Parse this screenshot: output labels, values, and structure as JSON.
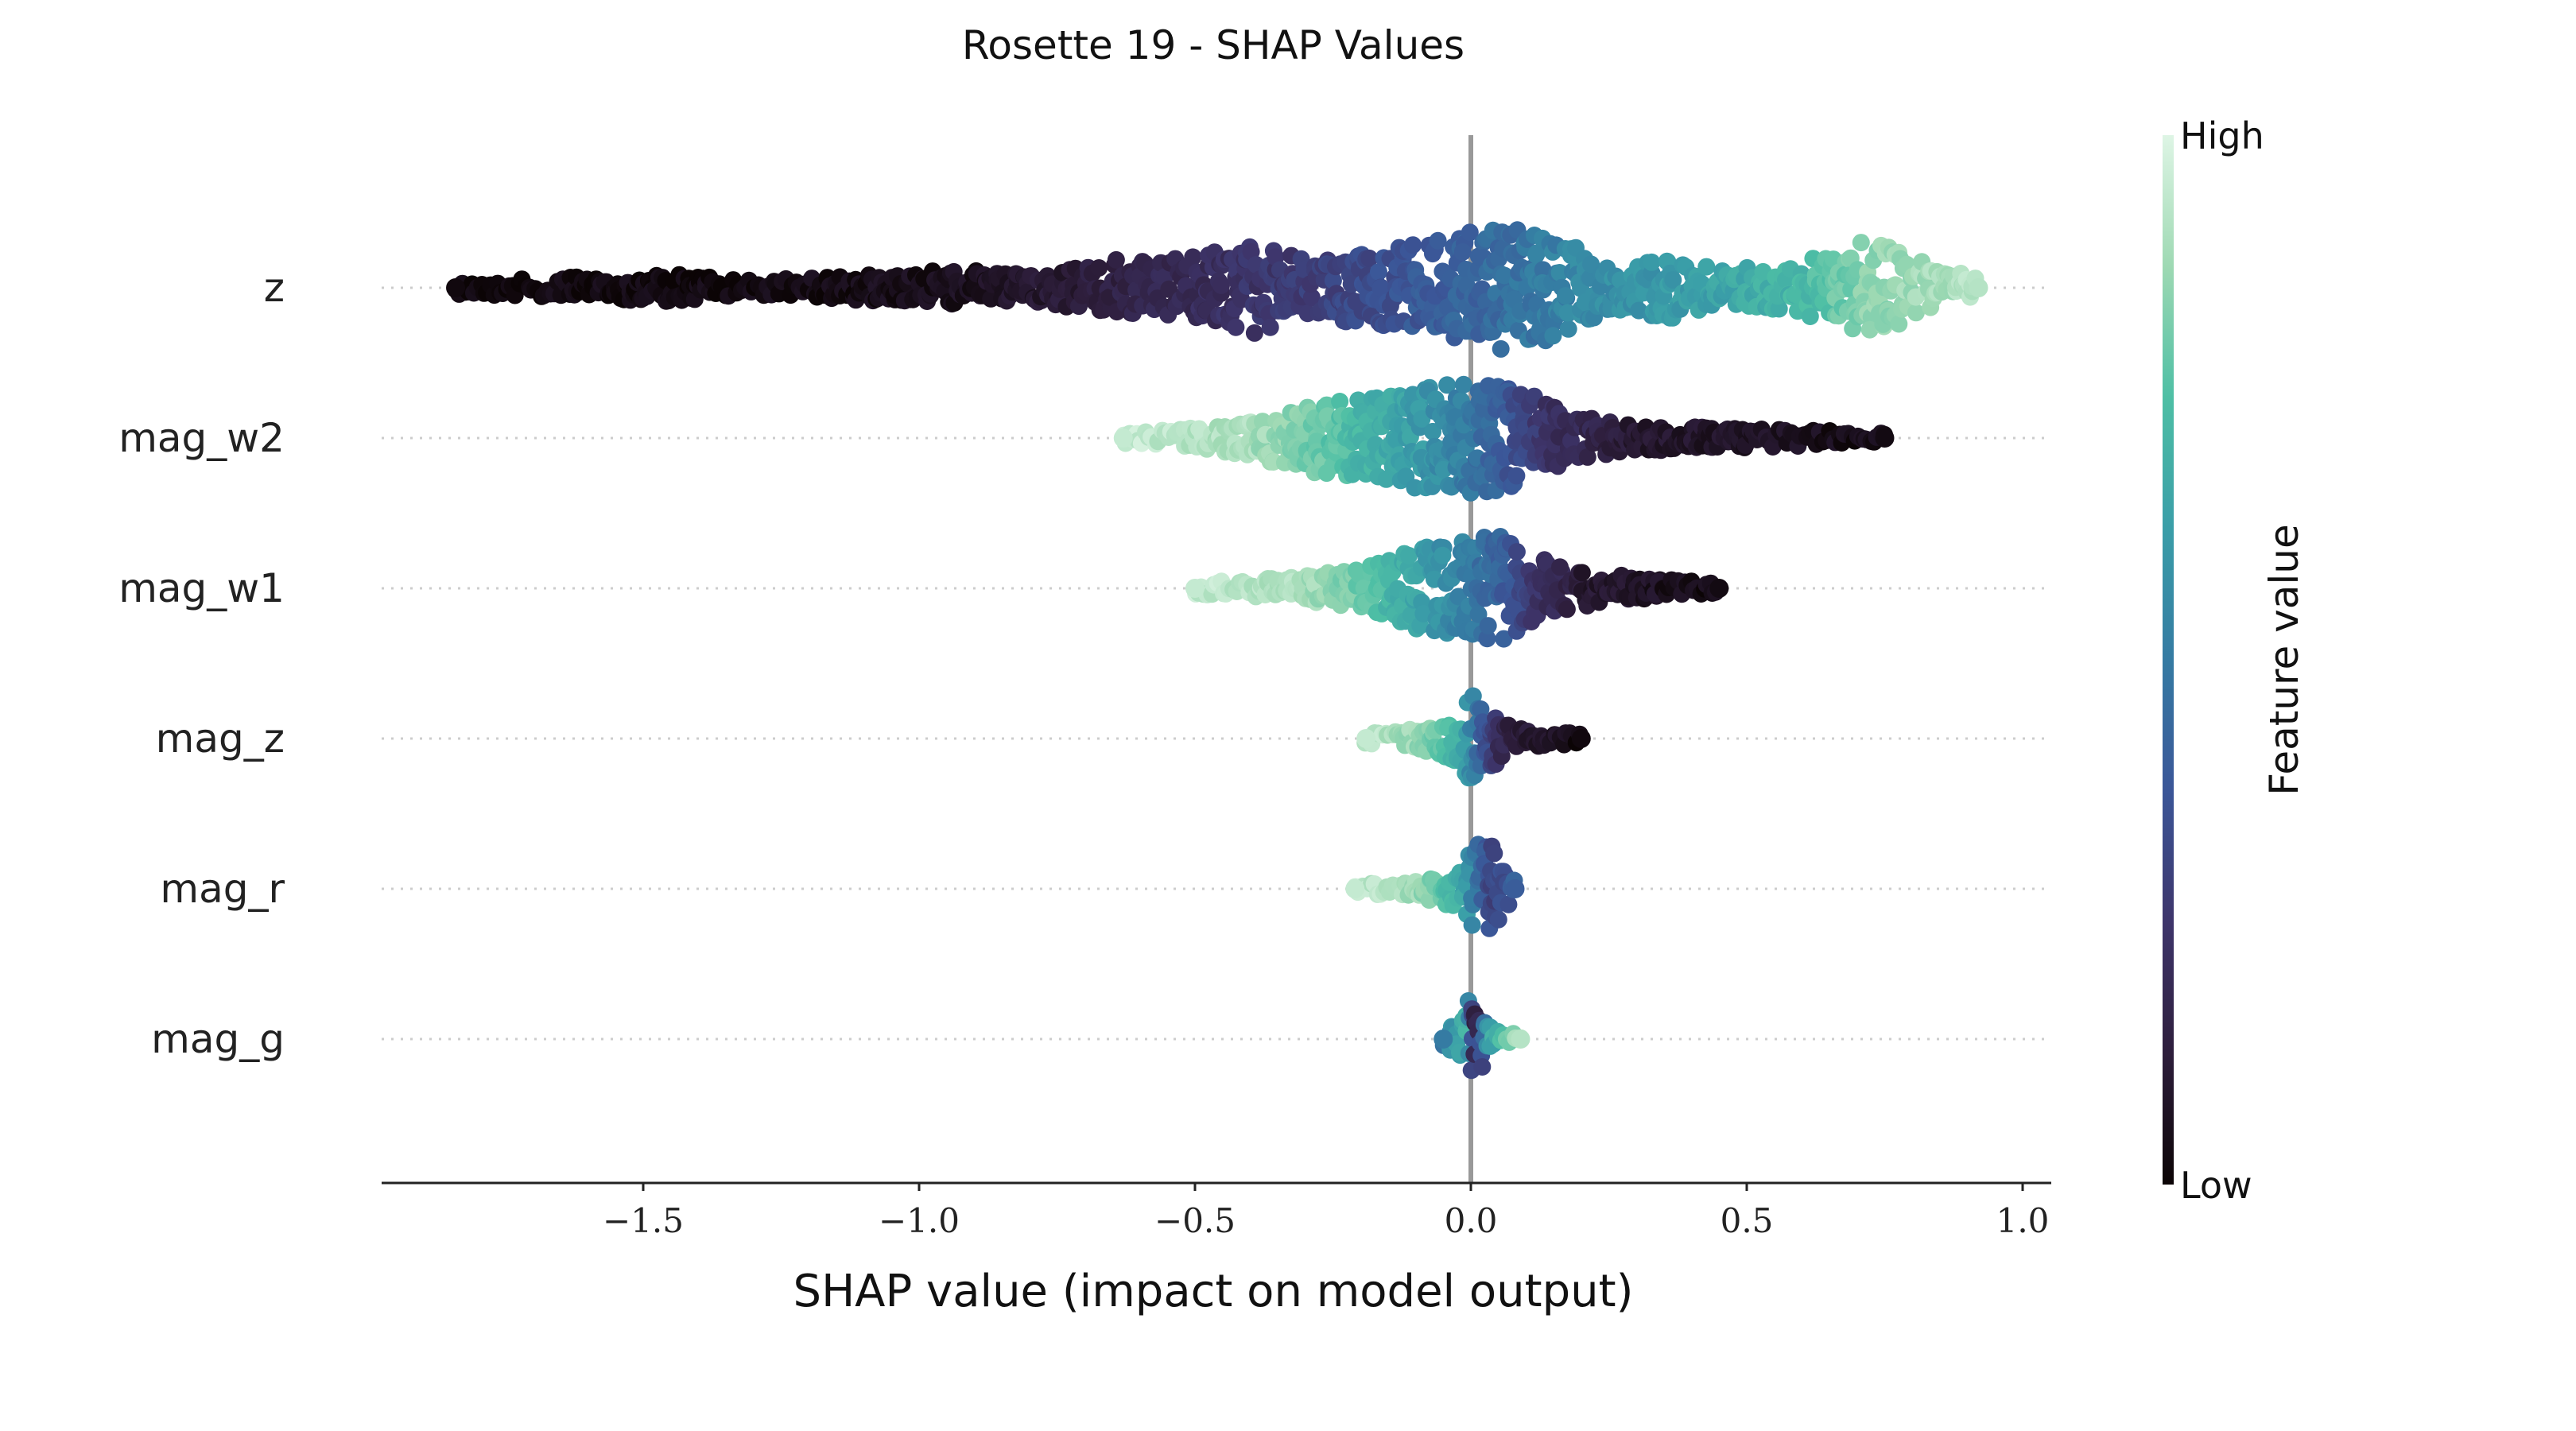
{
  "chart_data": {
    "type": "scatter",
    "subtype": "shap-beeswarm",
    "title": "Rosette 19 - SHAP Values",
    "xlabel": "SHAP value (impact on model output)",
    "xlim": [
      -1.98,
      1.05
    ],
    "x_ticks": [
      -1.5,
      -1.0,
      -0.5,
      0.0,
      0.5,
      1.0
    ],
    "x_tick_labels": [
      "−1.5",
      "−1.0",
      "−0.5",
      "0.0",
      "0.5",
      "1.0"
    ],
    "zero_line": 0.0,
    "grid": false,
    "features": [
      {
        "name": "z",
        "min": -1.84,
        "max": 0.92,
        "color_trend": "low feature value → negative SHAP, high feature value → positive SHAP",
        "density": [
          [
            -1.84,
            0.1
          ],
          [
            -1.6,
            0.18
          ],
          [
            -1.45,
            0.22
          ],
          [
            -1.3,
            0.12
          ],
          [
            -1.15,
            0.18
          ],
          [
            -1.0,
            0.25
          ],
          [
            -0.95,
            0.3
          ],
          [
            -0.8,
            0.22
          ],
          [
            -0.65,
            0.45
          ],
          [
            -0.5,
            0.5
          ],
          [
            -0.4,
            0.75
          ],
          [
            -0.3,
            0.45
          ],
          [
            -0.15,
            0.65
          ],
          [
            -0.05,
            0.8
          ],
          [
            0.05,
            1.0
          ],
          [
            0.15,
            0.85
          ],
          [
            0.25,
            0.35
          ],
          [
            0.35,
            0.55
          ],
          [
            0.45,
            0.3
          ],
          [
            0.55,
            0.35
          ],
          [
            0.65,
            0.55
          ],
          [
            0.72,
            0.8
          ],
          [
            0.8,
            0.5
          ],
          [
            0.92,
            0.15
          ]
        ],
        "color_stops": [
          [
            -1.84,
            0.02
          ],
          [
            -1.2,
            0.03
          ],
          [
            -0.9,
            0.06
          ],
          [
            -0.7,
            0.12
          ],
          [
            -0.5,
            0.2
          ],
          [
            -0.3,
            0.28
          ],
          [
            -0.1,
            0.38
          ],
          [
            0.05,
            0.45
          ],
          [
            0.2,
            0.55
          ],
          [
            0.4,
            0.62
          ],
          [
            0.6,
            0.72
          ],
          [
            0.72,
            0.85
          ],
          [
            0.92,
            0.92
          ]
        ]
      },
      {
        "name": "mag_w2",
        "min": -0.63,
        "max": 0.75,
        "color_trend": "high feature value → negative SHAP, low feature value → positive SHAP",
        "density": [
          [
            -0.63,
            0.1
          ],
          [
            -0.5,
            0.18
          ],
          [
            -0.4,
            0.35
          ],
          [
            -0.3,
            0.6
          ],
          [
            -0.2,
            0.75
          ],
          [
            -0.1,
            0.9
          ],
          [
            0.0,
            1.0
          ],
          [
            0.08,
            0.9
          ],
          [
            0.18,
            0.45
          ],
          [
            0.28,
            0.25
          ],
          [
            0.45,
            0.18
          ],
          [
            0.6,
            0.15
          ],
          [
            0.75,
            0.1
          ]
        ],
        "color_stops": [
          [
            -0.63,
            0.95
          ],
          [
            -0.4,
            0.9
          ],
          [
            -0.3,
            0.82
          ],
          [
            -0.2,
            0.72
          ],
          [
            -0.1,
            0.62
          ],
          [
            0.0,
            0.5
          ],
          [
            0.08,
            0.35
          ],
          [
            0.15,
            0.22
          ],
          [
            0.3,
            0.1
          ],
          [
            0.75,
            0.03
          ]
        ]
      },
      {
        "name": "mag_w1",
        "min": -0.5,
        "max": 0.45,
        "color_trend": "high feature value → negative SHAP, low feature value → positive SHAP",
        "density": [
          [
            -0.5,
            0.12
          ],
          [
            -0.35,
            0.18
          ],
          [
            -0.2,
            0.35
          ],
          [
            -0.1,
            0.75
          ],
          [
            0.0,
            0.85
          ],
          [
            0.05,
            1.0
          ],
          [
            0.12,
            0.55
          ],
          [
            0.2,
            0.35
          ],
          [
            0.3,
            0.2
          ],
          [
            0.45,
            0.1
          ]
        ],
        "color_stops": [
          [
            -0.5,
            0.95
          ],
          [
            -0.3,
            0.9
          ],
          [
            -0.2,
            0.8
          ],
          [
            -0.1,
            0.65
          ],
          [
            0.0,
            0.5
          ],
          [
            0.05,
            0.42
          ],
          [
            0.12,
            0.25
          ],
          [
            0.2,
            0.1
          ],
          [
            0.45,
            0.03
          ]
        ]
      },
      {
        "name": "mag_z",
        "min": -0.19,
        "max": 0.2,
        "color_trend": "high feature value → negative SHAP, low feature value → positive SHAP",
        "density": [
          [
            -0.19,
            0.1
          ],
          [
            -0.1,
            0.2
          ],
          [
            -0.02,
            0.55
          ],
          [
            0.0,
            1.0
          ],
          [
            0.03,
            0.7
          ],
          [
            0.08,
            0.25
          ],
          [
            0.15,
            0.15
          ],
          [
            0.2,
            0.1
          ]
        ],
        "color_stops": [
          [
            -0.19,
            0.95
          ],
          [
            -0.08,
            0.85
          ],
          [
            -0.02,
            0.7
          ],
          [
            0.0,
            0.55
          ],
          [
            0.03,
            0.35
          ],
          [
            0.06,
            0.15
          ],
          [
            0.2,
            0.02
          ]
        ]
      },
      {
        "name": "mag_r",
        "min": -0.21,
        "max": 0.08,
        "color_trend": "high feature value → negative SHAP, mixed near zero",
        "density": [
          [
            -0.21,
            0.1
          ],
          [
            -0.1,
            0.18
          ],
          [
            -0.02,
            0.4
          ],
          [
            0.01,
            1.0
          ],
          [
            0.04,
            0.9
          ],
          [
            0.08,
            0.2
          ]
        ],
        "color_stops": [
          [
            -0.21,
            0.95
          ],
          [
            -0.1,
            0.88
          ],
          [
            -0.02,
            0.7
          ],
          [
            0.01,
            0.5
          ],
          [
            0.04,
            0.3
          ],
          [
            0.08,
            0.4
          ]
        ]
      },
      {
        "name": "mag_g",
        "min": -0.05,
        "max": 0.09,
        "color_trend": "low feature value → near zero, high feature value → spread on both sides",
        "density": [
          [
            -0.05,
            0.15
          ],
          [
            -0.01,
            0.5
          ],
          [
            0.0,
            1.0
          ],
          [
            0.02,
            0.6
          ],
          [
            0.05,
            0.15
          ],
          [
            0.09,
            0.1
          ]
        ],
        "color_stops": [
          [
            -0.05,
            0.5
          ],
          [
            -0.01,
            0.7
          ],
          [
            0.0,
            0.4
          ],
          [
            0.01,
            0.1
          ],
          [
            0.03,
            0.6
          ],
          [
            0.09,
            0.92
          ]
        ]
      }
    ],
    "colorbar": {
      "label": "Feature value",
      "high_label": "High",
      "low_label": "Low",
      "colormap": "mako",
      "stops": [
        "#0b0405",
        "#2e1e3c",
        "#3e356b",
        "#3b5698",
        "#357ba3",
        "#3a9ea8",
        "#4ebfa5",
        "#9ed9b3",
        "#def5e5"
      ]
    }
  }
}
